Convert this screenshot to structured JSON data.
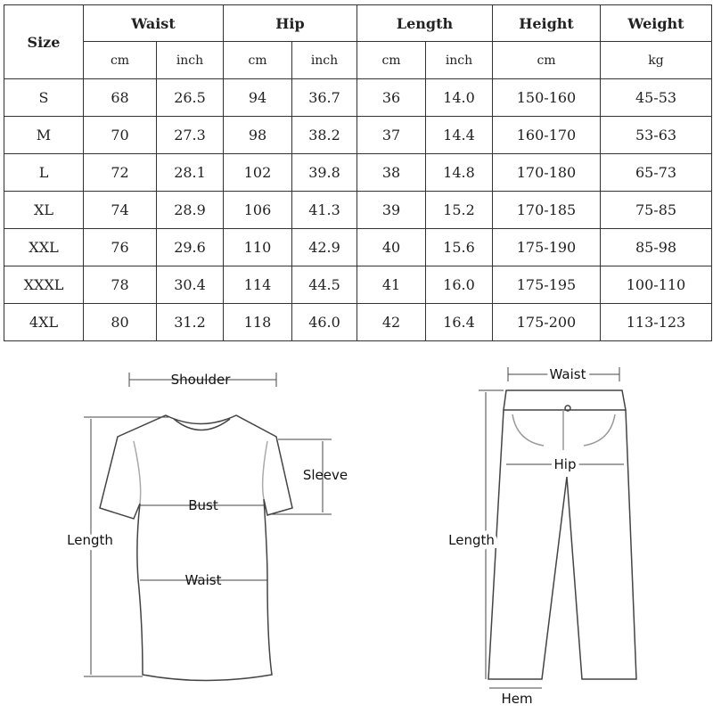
{
  "table": {
    "size_header": "Size",
    "groups": [
      "Waist",
      "Hip",
      "Length",
      "Height",
      "Weight"
    ],
    "units": [
      "cm",
      "inch",
      "cm",
      "inch",
      "cm",
      "inch",
      "cm",
      "kg"
    ],
    "rows": [
      [
        "S",
        "68",
        "26.5",
        "94",
        "36.7",
        "36",
        "14.0",
        "150-160",
        "45-53"
      ],
      [
        "M",
        "70",
        "27.3",
        "98",
        "38.2",
        "37",
        "14.4",
        "160-170",
        "53-63"
      ],
      [
        "L",
        "72",
        "28.1",
        "102",
        "39.8",
        "38",
        "14.8",
        "170-180",
        "65-73"
      ],
      [
        "XL",
        "74",
        "28.9",
        "106",
        "41.3",
        "39",
        "15.2",
        "170-185",
        "75-85"
      ],
      [
        "XXL",
        "76",
        "29.6",
        "110",
        "42.9",
        "40",
        "15.6",
        "175-190",
        "85-98"
      ],
      [
        "XXXL",
        "78",
        "30.4",
        "114",
        "44.5",
        "41",
        "16.0",
        "175-195",
        "100-110"
      ],
      [
        "4XL",
        "80",
        "31.2",
        "118",
        "46.0",
        "42",
        "16.4",
        "175-200",
        "113-123"
      ]
    ]
  },
  "shirt_diagram": {
    "shoulder": "Shoulder",
    "sleeve": "Sleeve",
    "bust": "Bust",
    "length": "Length",
    "waist": "Waist"
  },
  "pants_diagram": {
    "waist": "Waist",
    "hip": "Hip",
    "length": "Length",
    "hem": "Hem"
  }
}
